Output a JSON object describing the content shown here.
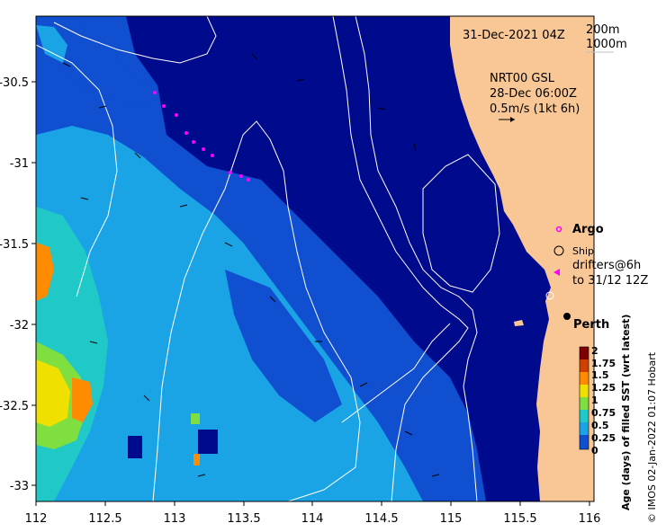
{
  "timestamp": "31-Dec-2021 04Z",
  "isobath_labels": [
    "200m",
    "1000m"
  ],
  "current_product": "NRT00 GSL",
  "current_date": "28-Dec 06:00Z",
  "scale_arrow_label": "0.5m/s (1kt 6h)",
  "legend": {
    "argo": "Argo",
    "ship": "Ship",
    "drifters_line1": "drifters@6h",
    "drifters_line2": "to 31/12 12Z"
  },
  "city_label": "Perth",
  "colorbar": {
    "title": "Age (days) of filled SST (wrt latest)",
    "ticks": [
      "2",
      "1.75",
      "1.5",
      "1.25",
      "1",
      "0.75",
      "0.5",
      "0.25",
      "0"
    ],
    "colors": [
      "#7f0000",
      "#d04000",
      "#ff8c00",
      "#f0e000",
      "#7fdf40",
      "#20c8c8",
      "#1aa4e6",
      "#0f4fd0",
      "#000a8c"
    ]
  },
  "credit": "© IMOS 02-Jan-2022 01:07 Hobart",
  "x_axis": {
    "ticks": [
      "112",
      "112.5",
      "113",
      "113.5",
      "114",
      "114.5",
      "115",
      "115.5",
      "116"
    ]
  },
  "y_axis": {
    "ticks": [
      "-30.5",
      "-31",
      "-31.5",
      "-32",
      "-32.5",
      "-33"
    ]
  },
  "colors": {
    "land": "#f9c795",
    "age_0": "#000a8c",
    "age_0_25": "#0f4fd0",
    "age_0_5": "#1aa4e6",
    "age_0_75": "#20c8c8",
    "age_1": "#7fdf40",
    "age_1_25": "#f0e000",
    "age_1_5": "#ff8c00",
    "argo_marker": "#ff00ff"
  }
}
